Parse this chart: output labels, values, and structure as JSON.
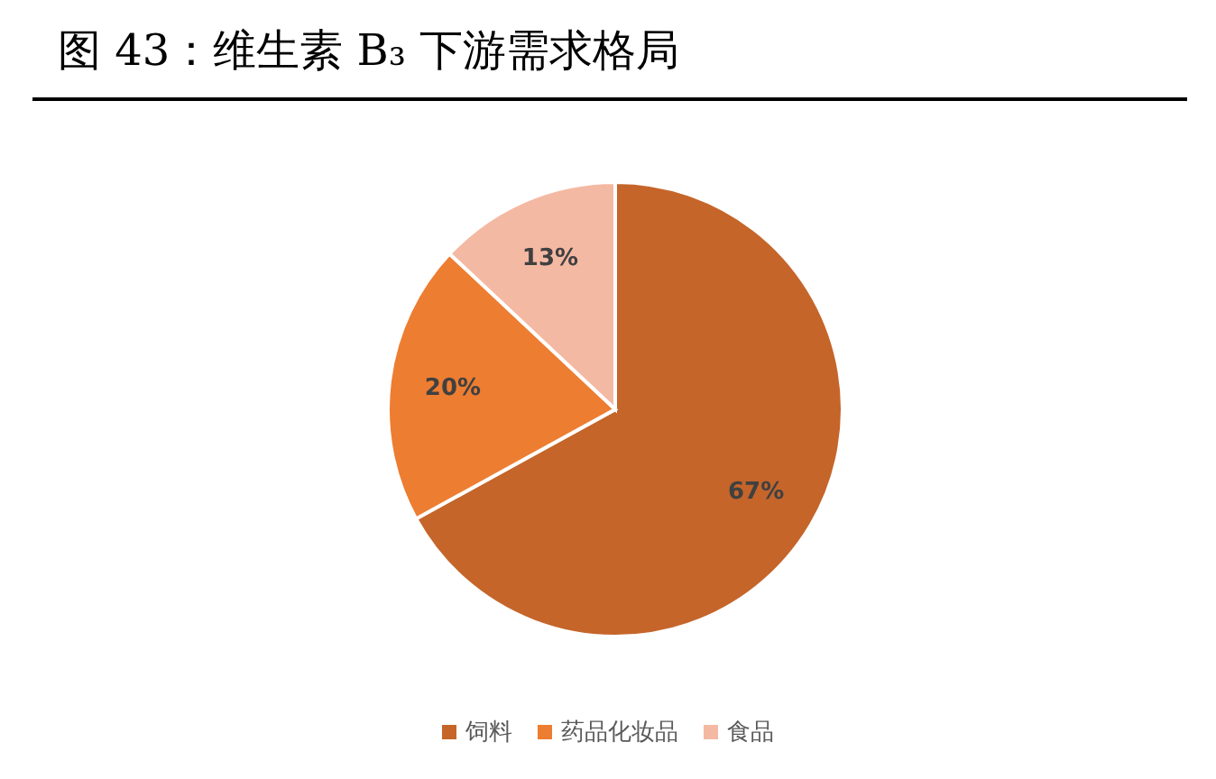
{
  "chart_data": {
    "type": "pie",
    "title": "图 43：维生素 B₃ 下游需求格局",
    "categories": [
      "饲料",
      "药品化妆品",
      "食品"
    ],
    "values": [
      67,
      20,
      13
    ],
    "colors": [
      "#c5652a",
      "#ed7d31",
      "#f4b9a3"
    ],
    "value_labels": [
      "67%",
      "20%",
      "13%"
    ],
    "legend": "bottom"
  }
}
